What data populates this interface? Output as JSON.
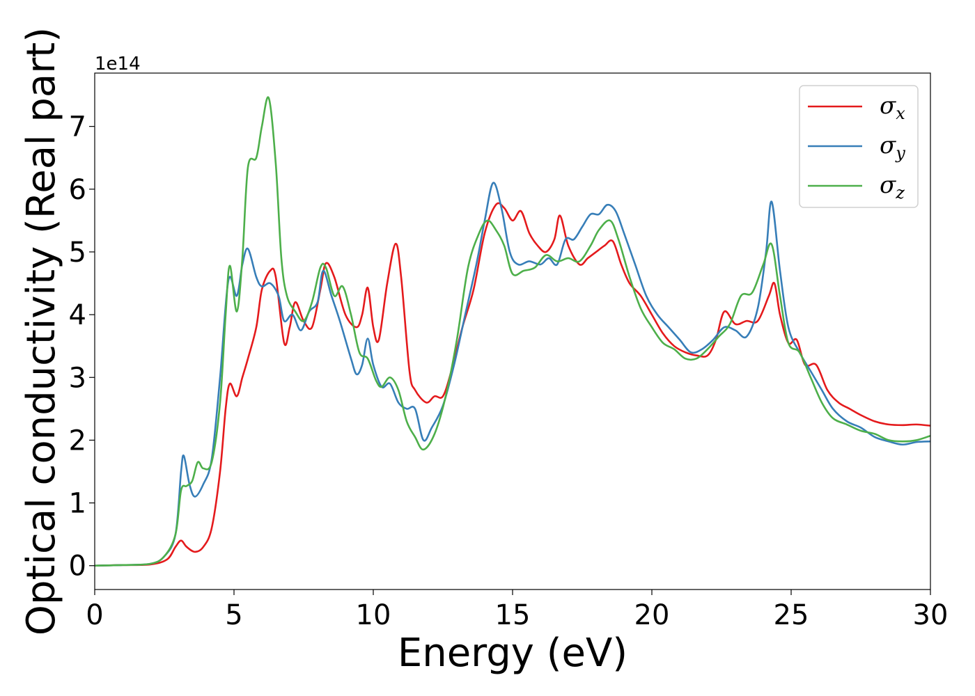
{
  "chart_data": {
    "type": "line",
    "title": "",
    "xlabel": "Energy (eV)",
    "ylabel": "Optical conductivity (Real part)",
    "y_offset_label": "1e14",
    "xlim": [
      0,
      30
    ],
    "ylim": [
      -0.38,
      7.85
    ],
    "xticks": [
      0,
      5,
      10,
      15,
      20,
      25,
      30
    ],
    "yticks": [
      0,
      1,
      2,
      3,
      4,
      5,
      6,
      7
    ],
    "xtick_labels": [
      "0",
      "5",
      "10",
      "15",
      "20",
      "25",
      "30"
    ],
    "ytick_labels": [
      "0",
      "1",
      "2",
      "3",
      "4",
      "5",
      "6",
      "7"
    ],
    "grid": false,
    "legend_position": "top-right",
    "series": [
      {
        "name": "σx",
        "symbol": "σ",
        "subscript": "x",
        "color": "#e41a1c",
        "points": [
          [
            0,
            0
          ],
          [
            1,
            0.01
          ],
          [
            2,
            0.02
          ],
          [
            2.6,
            0.1
          ],
          [
            2.9,
            0.3
          ],
          [
            3.1,
            0.4
          ],
          [
            3.3,
            0.3
          ],
          [
            3.6,
            0.22
          ],
          [
            3.9,
            0.3
          ],
          [
            4.2,
            0.6
          ],
          [
            4.5,
            1.5
          ],
          [
            4.7,
            2.5
          ],
          [
            4.85,
            2.9
          ],
          [
            5.1,
            2.7
          ],
          [
            5.3,
            3.0
          ],
          [
            5.5,
            3.3
          ],
          [
            5.8,
            3.8
          ],
          [
            6.0,
            4.4
          ],
          [
            6.3,
            4.7
          ],
          [
            6.5,
            4.6
          ],
          [
            6.8,
            3.55
          ],
          [
            7.0,
            3.8
          ],
          [
            7.2,
            4.2
          ],
          [
            7.5,
            3.9
          ],
          [
            7.8,
            3.8
          ],
          [
            8.1,
            4.4
          ],
          [
            8.3,
            4.82
          ],
          [
            8.6,
            4.6
          ],
          [
            9.0,
            4.0
          ],
          [
            9.4,
            3.8
          ],
          [
            9.6,
            4.0
          ],
          [
            9.8,
            4.43
          ],
          [
            10.0,
            3.8
          ],
          [
            10.2,
            3.6
          ],
          [
            10.5,
            4.5
          ],
          [
            10.8,
            5.13
          ],
          [
            11.0,
            4.6
          ],
          [
            11.3,
            3.1
          ],
          [
            11.5,
            2.8
          ],
          [
            11.9,
            2.6
          ],
          [
            12.2,
            2.7
          ],
          [
            12.5,
            2.7
          ],
          [
            12.8,
            3.1
          ],
          [
            13.2,
            3.8
          ],
          [
            13.6,
            4.4
          ],
          [
            14.0,
            5.3
          ],
          [
            14.4,
            5.75
          ],
          [
            14.7,
            5.7
          ],
          [
            15.0,
            5.5
          ],
          [
            15.3,
            5.65
          ],
          [
            15.6,
            5.3
          ],
          [
            15.9,
            5.1
          ],
          [
            16.2,
            5.0
          ],
          [
            16.5,
            5.2
          ],
          [
            16.7,
            5.58
          ],
          [
            17.0,
            5.1
          ],
          [
            17.4,
            4.8
          ],
          [
            17.7,
            4.9
          ],
          [
            18.0,
            5.0
          ],
          [
            18.3,
            5.1
          ],
          [
            18.6,
            5.17
          ],
          [
            18.9,
            4.8
          ],
          [
            19.2,
            4.5
          ],
          [
            19.6,
            4.3
          ],
          [
            20.0,
            4.0
          ],
          [
            20.4,
            3.7
          ],
          [
            20.8,
            3.5
          ],
          [
            21.2,
            3.4
          ],
          [
            21.6,
            3.35
          ],
          [
            22.0,
            3.35
          ],
          [
            22.3,
            3.6
          ],
          [
            22.6,
            4.05
          ],
          [
            23.0,
            3.85
          ],
          [
            23.4,
            3.9
          ],
          [
            23.8,
            3.9
          ],
          [
            24.2,
            4.3
          ],
          [
            24.4,
            4.5
          ],
          [
            24.6,
            4.0
          ],
          [
            24.9,
            3.55
          ],
          [
            25.2,
            3.6
          ],
          [
            25.5,
            3.2
          ],
          [
            25.9,
            3.2
          ],
          [
            26.3,
            2.8
          ],
          [
            26.7,
            2.6
          ],
          [
            27.1,
            2.5
          ],
          [
            27.5,
            2.4
          ],
          [
            28.0,
            2.3
          ],
          [
            28.5,
            2.25
          ],
          [
            29.0,
            2.24
          ],
          [
            29.5,
            2.25
          ],
          [
            30.0,
            2.23
          ]
        ]
      },
      {
        "name": "σy",
        "symbol": "σ",
        "subscript": "y",
        "color": "#377eb8",
        "points": [
          [
            0,
            0
          ],
          [
            1,
            0.01
          ],
          [
            2,
            0.03
          ],
          [
            2.5,
            0.15
          ],
          [
            2.9,
            0.5
          ],
          [
            3.1,
            1.5
          ],
          [
            3.2,
            1.75
          ],
          [
            3.4,
            1.3
          ],
          [
            3.6,
            1.1
          ],
          [
            3.9,
            1.3
          ],
          [
            4.2,
            1.7
          ],
          [
            4.5,
            3.0
          ],
          [
            4.8,
            4.55
          ],
          [
            5.1,
            4.3
          ],
          [
            5.3,
            4.8
          ],
          [
            5.5,
            5.05
          ],
          [
            5.8,
            4.6
          ],
          [
            6.0,
            4.45
          ],
          [
            6.3,
            4.5
          ],
          [
            6.6,
            4.3
          ],
          [
            6.8,
            3.9
          ],
          [
            7.1,
            4.0
          ],
          [
            7.4,
            3.75
          ],
          [
            7.7,
            4.05
          ],
          [
            8.0,
            4.2
          ],
          [
            8.2,
            4.7
          ],
          [
            8.5,
            4.3
          ],
          [
            8.8,
            3.9
          ],
          [
            9.2,
            3.3
          ],
          [
            9.4,
            3.05
          ],
          [
            9.6,
            3.2
          ],
          [
            9.8,
            3.62
          ],
          [
            10.0,
            3.2
          ],
          [
            10.3,
            2.85
          ],
          [
            10.6,
            2.9
          ],
          [
            10.9,
            2.6
          ],
          [
            11.2,
            2.5
          ],
          [
            11.5,
            2.5
          ],
          [
            11.8,
            2.0
          ],
          [
            12.1,
            2.2
          ],
          [
            12.5,
            2.55
          ],
          [
            12.9,
            3.2
          ],
          [
            13.3,
            4.0
          ],
          [
            13.7,
            4.8
          ],
          [
            14.0,
            5.5
          ],
          [
            14.3,
            6.1
          ],
          [
            14.6,
            5.7
          ],
          [
            14.9,
            5.0
          ],
          [
            15.2,
            4.8
          ],
          [
            15.6,
            4.85
          ],
          [
            16.0,
            4.8
          ],
          [
            16.3,
            4.9
          ],
          [
            16.6,
            4.8
          ],
          [
            16.9,
            5.2
          ],
          [
            17.2,
            5.2
          ],
          [
            17.5,
            5.4
          ],
          [
            17.8,
            5.6
          ],
          [
            18.1,
            5.6
          ],
          [
            18.4,
            5.75
          ],
          [
            18.7,
            5.65
          ],
          [
            19.0,
            5.3
          ],
          [
            19.4,
            4.8
          ],
          [
            19.8,
            4.3
          ],
          [
            20.2,
            4.0
          ],
          [
            20.6,
            3.8
          ],
          [
            21.0,
            3.6
          ],
          [
            21.4,
            3.4
          ],
          [
            21.8,
            3.45
          ],
          [
            22.2,
            3.6
          ],
          [
            22.6,
            3.8
          ],
          [
            23.0,
            3.75
          ],
          [
            23.4,
            3.65
          ],
          [
            23.8,
            4.1
          ],
          [
            24.1,
            5.0
          ],
          [
            24.3,
            5.8
          ],
          [
            24.6,
            4.7
          ],
          [
            24.9,
            3.8
          ],
          [
            25.3,
            3.4
          ],
          [
            25.7,
            3.1
          ],
          [
            26.1,
            2.8
          ],
          [
            26.5,
            2.5
          ],
          [
            27.0,
            2.3
          ],
          [
            27.5,
            2.2
          ],
          [
            28.0,
            2.05
          ],
          [
            28.5,
            1.98
          ],
          [
            29.0,
            1.93
          ],
          [
            29.5,
            1.97
          ],
          [
            30.0,
            1.98
          ]
        ]
      },
      {
        "name": "σz",
        "symbol": "σ",
        "subscript": "z",
        "color": "#4daf4a",
        "points": [
          [
            0,
            0
          ],
          [
            1,
            0.01
          ],
          [
            2,
            0.03
          ],
          [
            2.5,
            0.15
          ],
          [
            2.9,
            0.5
          ],
          [
            3.1,
            1.2
          ],
          [
            3.3,
            1.27
          ],
          [
            3.5,
            1.35
          ],
          [
            3.7,
            1.65
          ],
          [
            3.9,
            1.55
          ],
          [
            4.2,
            1.65
          ],
          [
            4.5,
            2.6
          ],
          [
            4.7,
            4.0
          ],
          [
            4.85,
            4.78
          ],
          [
            5.1,
            4.05
          ],
          [
            5.3,
            4.9
          ],
          [
            5.5,
            6.35
          ],
          [
            5.8,
            6.5
          ],
          [
            6.0,
            7.0
          ],
          [
            6.25,
            7.45
          ],
          [
            6.5,
            6.4
          ],
          [
            6.7,
            4.9
          ],
          [
            6.9,
            4.3
          ],
          [
            7.2,
            4.05
          ],
          [
            7.5,
            3.9
          ],
          [
            7.8,
            4.2
          ],
          [
            8.1,
            4.75
          ],
          [
            8.3,
            4.75
          ],
          [
            8.6,
            4.3
          ],
          [
            8.9,
            4.45
          ],
          [
            9.2,
            4.0
          ],
          [
            9.5,
            3.4
          ],
          [
            9.8,
            3.3
          ],
          [
            10.1,
            2.95
          ],
          [
            10.3,
            2.85
          ],
          [
            10.6,
            3.0
          ],
          [
            10.9,
            2.8
          ],
          [
            11.2,
            2.3
          ],
          [
            11.5,
            2.05
          ],
          [
            11.8,
            1.85
          ],
          [
            12.2,
            2.1
          ],
          [
            12.6,
            2.7
          ],
          [
            13.0,
            3.6
          ],
          [
            13.4,
            4.75
          ],
          [
            13.8,
            5.3
          ],
          [
            14.1,
            5.5
          ],
          [
            14.4,
            5.35
          ],
          [
            14.7,
            5.1
          ],
          [
            15.0,
            4.65
          ],
          [
            15.4,
            4.7
          ],
          [
            15.8,
            4.75
          ],
          [
            16.2,
            4.95
          ],
          [
            16.6,
            4.85
          ],
          [
            17.0,
            4.9
          ],
          [
            17.4,
            4.85
          ],
          [
            17.8,
            5.1
          ],
          [
            18.1,
            5.35
          ],
          [
            18.5,
            5.5
          ],
          [
            18.8,
            5.2
          ],
          [
            19.2,
            4.6
          ],
          [
            19.6,
            4.1
          ],
          [
            20.0,
            3.8
          ],
          [
            20.4,
            3.55
          ],
          [
            20.8,
            3.45
          ],
          [
            21.2,
            3.3
          ],
          [
            21.6,
            3.3
          ],
          [
            22.0,
            3.45
          ],
          [
            22.4,
            3.65
          ],
          [
            22.8,
            3.85
          ],
          [
            23.2,
            4.3
          ],
          [
            23.6,
            4.35
          ],
          [
            24.0,
            4.8
          ],
          [
            24.3,
            5.12
          ],
          [
            24.6,
            4.3
          ],
          [
            24.9,
            3.55
          ],
          [
            25.3,
            3.4
          ],
          [
            25.7,
            3.0
          ],
          [
            26.1,
            2.6
          ],
          [
            26.5,
            2.35
          ],
          [
            27.0,
            2.25
          ],
          [
            27.5,
            2.15
          ],
          [
            28.0,
            2.1
          ],
          [
            28.5,
            2.0
          ],
          [
            29.0,
            1.98
          ],
          [
            29.5,
            2.0
          ],
          [
            30.0,
            2.07
          ]
        ]
      }
    ]
  }
}
